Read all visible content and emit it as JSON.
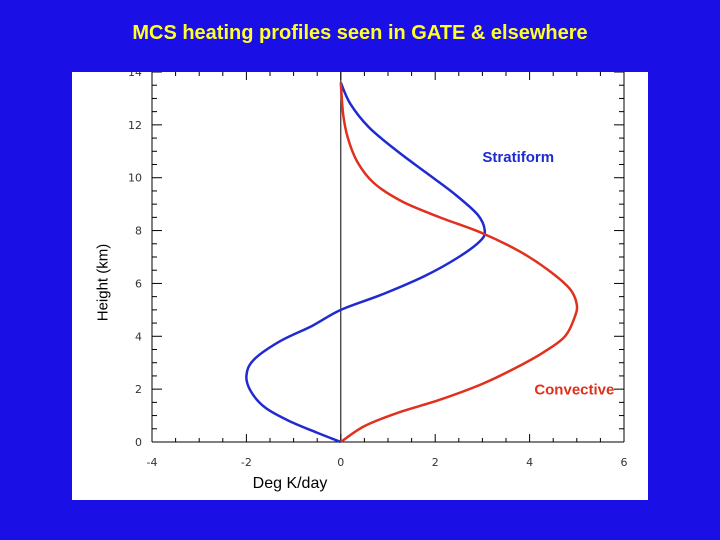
{
  "page": {
    "title": "MCS heating profiles seen in GATE & elsewhere"
  },
  "colors": {
    "background": "#1a10e6",
    "title": "#ffff2a",
    "stratiform": "#1f2bd1",
    "convective": "#e0301e"
  },
  "chart_data": {
    "type": "line",
    "xlabel": "Deg K/day",
    "ylabel": "Height (km)",
    "xlim": [
      -4,
      6
    ],
    "ylim": [
      0,
      14
    ],
    "x_ticks": [
      -4,
      -2,
      0,
      2,
      4,
      6
    ],
    "x_tick_labels": [
      "-4",
      "-2",
      "0",
      "2",
      "4",
      "6"
    ],
    "y_ticks": [
      0,
      2,
      4,
      6,
      8,
      10,
      12,
      14
    ],
    "y_tick_labels": [
      "0",
      "2",
      "4",
      "6",
      "8",
      "10",
      "12",
      "14"
    ],
    "grid": false,
    "zero_line_x": 0,
    "series": [
      {
        "name": "Stratiform",
        "color": "#1f2bd1",
        "points": [
          [
            0,
            0
          ],
          [
            -0.5,
            0.35
          ],
          [
            -1.1,
            0.8
          ],
          [
            -1.6,
            1.3
          ],
          [
            -1.9,
            1.9
          ],
          [
            -2.0,
            2.5
          ],
          [
            -1.85,
            3.1
          ],
          [
            -1.3,
            3.8
          ],
          [
            -0.6,
            4.4
          ],
          [
            0,
            5.0
          ],
          [
            0.9,
            5.6
          ],
          [
            1.8,
            6.3
          ],
          [
            2.5,
            7.0
          ],
          [
            2.95,
            7.6
          ],
          [
            3.05,
            8.0
          ],
          [
            2.9,
            8.6
          ],
          [
            2.4,
            9.4
          ],
          [
            1.8,
            10.2
          ],
          [
            1.2,
            11.0
          ],
          [
            0.6,
            11.9
          ],
          [
            0.2,
            12.8
          ],
          [
            0,
            13.6
          ]
        ]
      },
      {
        "name": "Convective",
        "color": "#e0301e",
        "points": [
          [
            0,
            0
          ],
          [
            0.5,
            0.6
          ],
          [
            1.2,
            1.1
          ],
          [
            2.1,
            1.6
          ],
          [
            3.0,
            2.2
          ],
          [
            3.7,
            2.8
          ],
          [
            4.3,
            3.4
          ],
          [
            4.75,
            4.0
          ],
          [
            4.95,
            4.7
          ],
          [
            5.0,
            5.2
          ],
          [
            4.85,
            5.8
          ],
          [
            4.4,
            6.5
          ],
          [
            3.8,
            7.2
          ],
          [
            3.0,
            7.9
          ],
          [
            2.1,
            8.5
          ],
          [
            1.3,
            9.1
          ],
          [
            0.7,
            9.8
          ],
          [
            0.35,
            10.6
          ],
          [
            0.15,
            11.5
          ],
          [
            0.05,
            12.4
          ],
          [
            0,
            13.6
          ]
        ]
      }
    ],
    "annotations": [
      {
        "text": "Stratiform",
        "x": 3.0,
        "y": 10.6,
        "series": "Stratiform"
      },
      {
        "text": "Convective",
        "x": 4.1,
        "y": 1.8,
        "series": "Convective"
      }
    ]
  }
}
